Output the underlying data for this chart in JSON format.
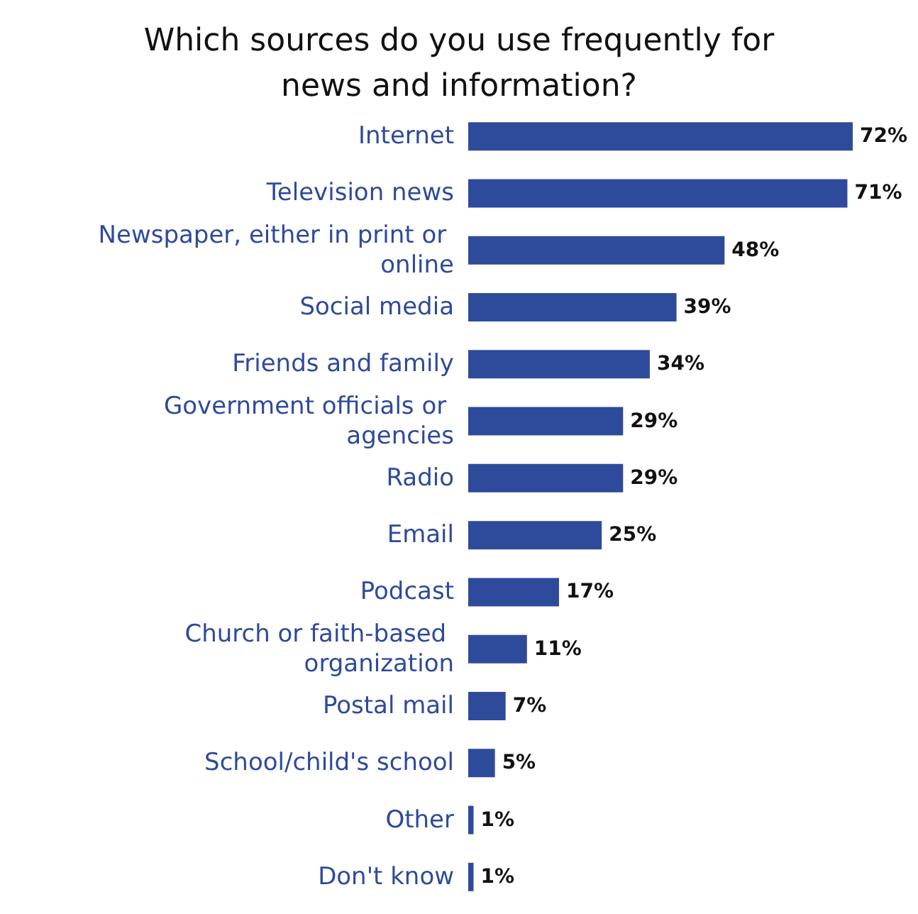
{
  "chart_data": {
    "type": "bar",
    "orientation": "horizontal",
    "title": "Which sources do you use frequently for\nnews and information?",
    "categories": [
      "Internet",
      "Television news",
      "Newspaper, either in print or online",
      "Social media",
      "Friends and family",
      "Government officials or agencies",
      "Radio",
      "Email",
      "Podcast",
      "Church or faith-based organization",
      "Postal mail",
      "School/child's school",
      "Other",
      "Don't know"
    ],
    "values": [
      72,
      71,
      48,
      39,
      34,
      29,
      29,
      25,
      17,
      11,
      7,
      5,
      1,
      1
    ],
    "value_labels": [
      "72%",
      "71%",
      "48%",
      "39%",
      "34%",
      "29%",
      "29%",
      "25%",
      "17%",
      "11%",
      "7%",
      "5%",
      "1%",
      "1%"
    ],
    "color": "#2e4a9a"
  }
}
